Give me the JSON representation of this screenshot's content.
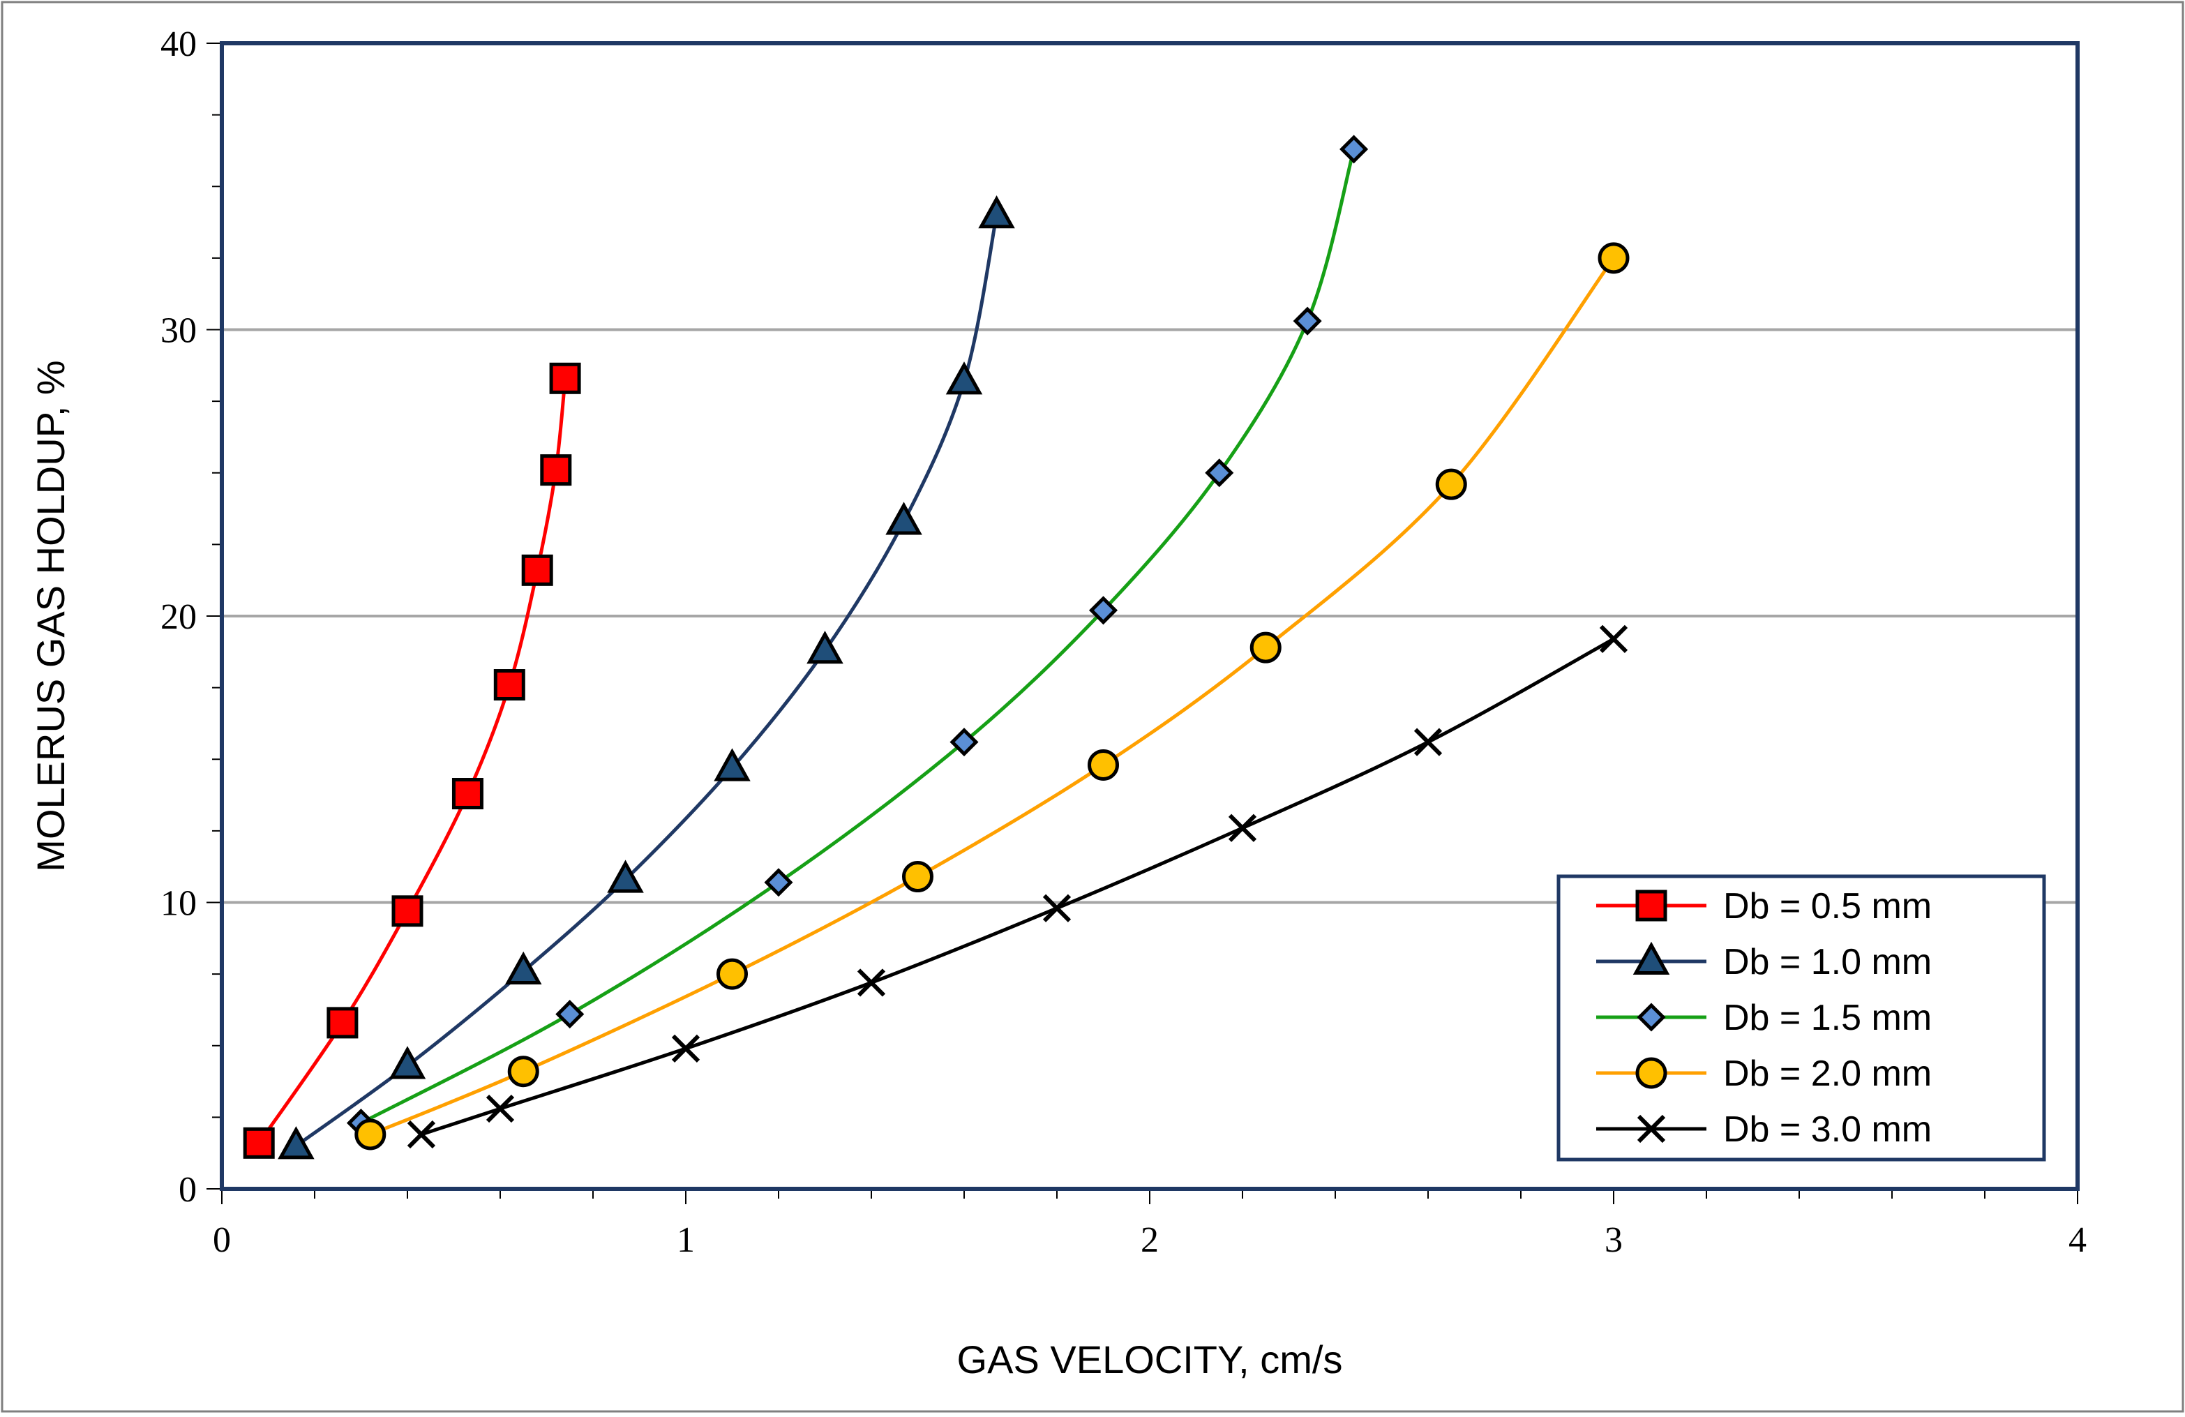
{
  "chart_data": {
    "type": "line",
    "title": "",
    "xlabel": "GAS VELOCITY, cm/s",
    "ylabel": "MOLERUS GAS HOLDUP, %",
    "xlim": [
      0,
      4
    ],
    "ylim": [
      0,
      40
    ],
    "x_ticks": [
      "0",
      "1",
      "2",
      "3",
      "4"
    ],
    "y_ticks": [
      "0",
      "10",
      "20",
      "30",
      "40"
    ],
    "grid": "horizontal major",
    "legend_position": "bottom-right",
    "series": [
      {
        "name": "Db = 0.5 mm",
        "color": "#ff0000",
        "marker": "square",
        "marker_fill": "#ff0000",
        "x": [
          0.08,
          0.26,
          0.4,
          0.53,
          0.62,
          0.68,
          0.72,
          0.74
        ],
        "y": [
          1.6,
          5.8,
          9.7,
          13.8,
          17.6,
          21.6,
          25.1,
          28.3
        ]
      },
      {
        "name": "Db = 1.0 mm",
        "color": "#1f3864",
        "marker": "triangle",
        "marker_fill": "#1f4e79",
        "x": [
          0.16,
          0.4,
          0.65,
          0.87,
          1.1,
          1.3,
          1.47,
          1.6,
          1.67
        ],
        "y": [
          1.5,
          4.3,
          7.6,
          10.8,
          14.7,
          18.8,
          23.3,
          28.2,
          34.0
        ]
      },
      {
        "name": "Db = 1.5 mm",
        "color": "#16a016",
        "marker": "diamond",
        "marker_fill": "#5b8fd6",
        "x": [
          0.3,
          0.75,
          1.2,
          1.6,
          1.9,
          2.15,
          2.34,
          2.44
        ],
        "y": [
          2.3,
          6.1,
          10.7,
          15.6,
          20.2,
          25.0,
          30.3,
          36.3
        ]
      },
      {
        "name": "Db = 2.0 mm",
        "color": "#ffa000",
        "marker": "circle",
        "marker_fill": "#ffc000",
        "x": [
          0.32,
          0.65,
          1.1,
          1.5,
          1.9,
          2.25,
          2.65,
          3.0
        ],
        "y": [
          1.9,
          4.1,
          7.5,
          10.9,
          14.8,
          18.9,
          24.6,
          32.5
        ]
      },
      {
        "name": "Db = 3.0 mm",
        "color": "#000000",
        "marker": "x",
        "marker_fill": "#000000",
        "x": [
          0.43,
          0.6,
          1.0,
          1.4,
          1.8,
          2.2,
          2.6,
          3.0
        ],
        "y": [
          1.9,
          2.8,
          4.9,
          7.2,
          9.8,
          12.6,
          15.6,
          19.2
        ]
      }
    ]
  },
  "colors": {
    "frame": "#1f3864",
    "grid": "#a6a6a6",
    "background": "#ffffff"
  }
}
